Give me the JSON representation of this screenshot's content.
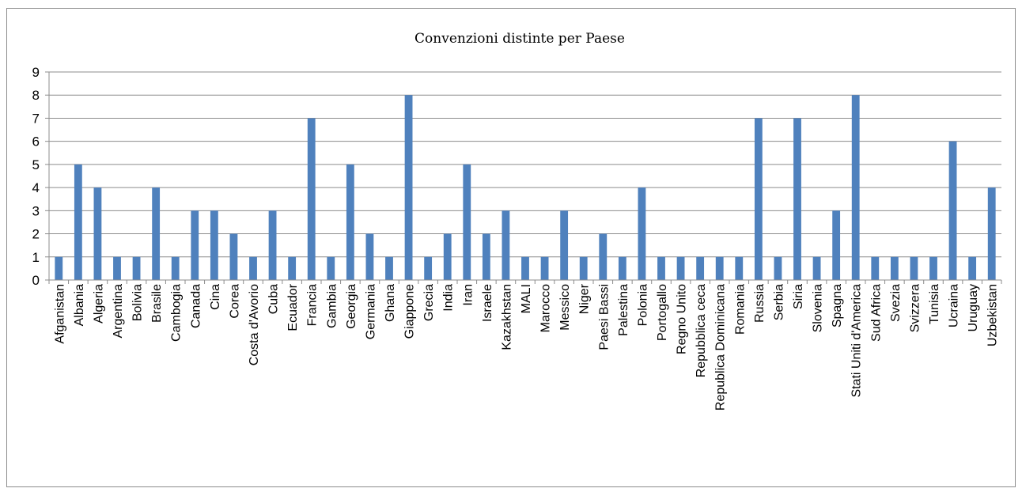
{
  "chart_data": {
    "type": "bar",
    "title": "Convenzioni distinte per Paese",
    "xlabel": "",
    "ylabel": "",
    "ylim": [
      0,
      9
    ],
    "yticks": [
      0,
      1,
      2,
      3,
      4,
      5,
      6,
      7,
      8,
      9
    ],
    "grid": true,
    "legend": "none",
    "bar_color": "#4f81bd",
    "categories": [
      "Afganistan",
      "Albania",
      "Algeria",
      "Argentina",
      "Bolivia",
      "Brasile",
      "Cambogia",
      "Canada",
      "Cina",
      "Corea",
      "Costa d'Avorio",
      "Cuba",
      "Ecuador",
      "Francia",
      "Gambia",
      "Georgia",
      "Germania",
      "Ghana",
      "Giappone",
      "Grecia",
      "India",
      "Iran",
      "Israele",
      "Kazakhstan",
      "MALI",
      "Marocco",
      "Messico",
      "Niger",
      "Paesi Bassi",
      "Palestina",
      "Polonia",
      "Portogallo",
      "Regno Unito",
      "Repubblica ceca",
      "Republica Dominicana",
      "Romania",
      "Russia",
      "Serbia",
      "Siria",
      "Slovenia",
      "Spagna",
      "Stati Uniti d'America",
      "Sud Africa",
      "Svezia",
      "Svizzera",
      "Tunisia",
      "Ucraina",
      "Uruguay",
      "Uzbekistan"
    ],
    "values": [
      1,
      5,
      4,
      1,
      1,
      4,
      1,
      3,
      3,
      2,
      1,
      3,
      1,
      7,
      1,
      5,
      2,
      1,
      8,
      1,
      2,
      5,
      2,
      3,
      1,
      1,
      3,
      1,
      2,
      1,
      4,
      1,
      1,
      1,
      1,
      1,
      7,
      1,
      7,
      1,
      3,
      8,
      1,
      1,
      1,
      1,
      6,
      1,
      4
    ]
  }
}
